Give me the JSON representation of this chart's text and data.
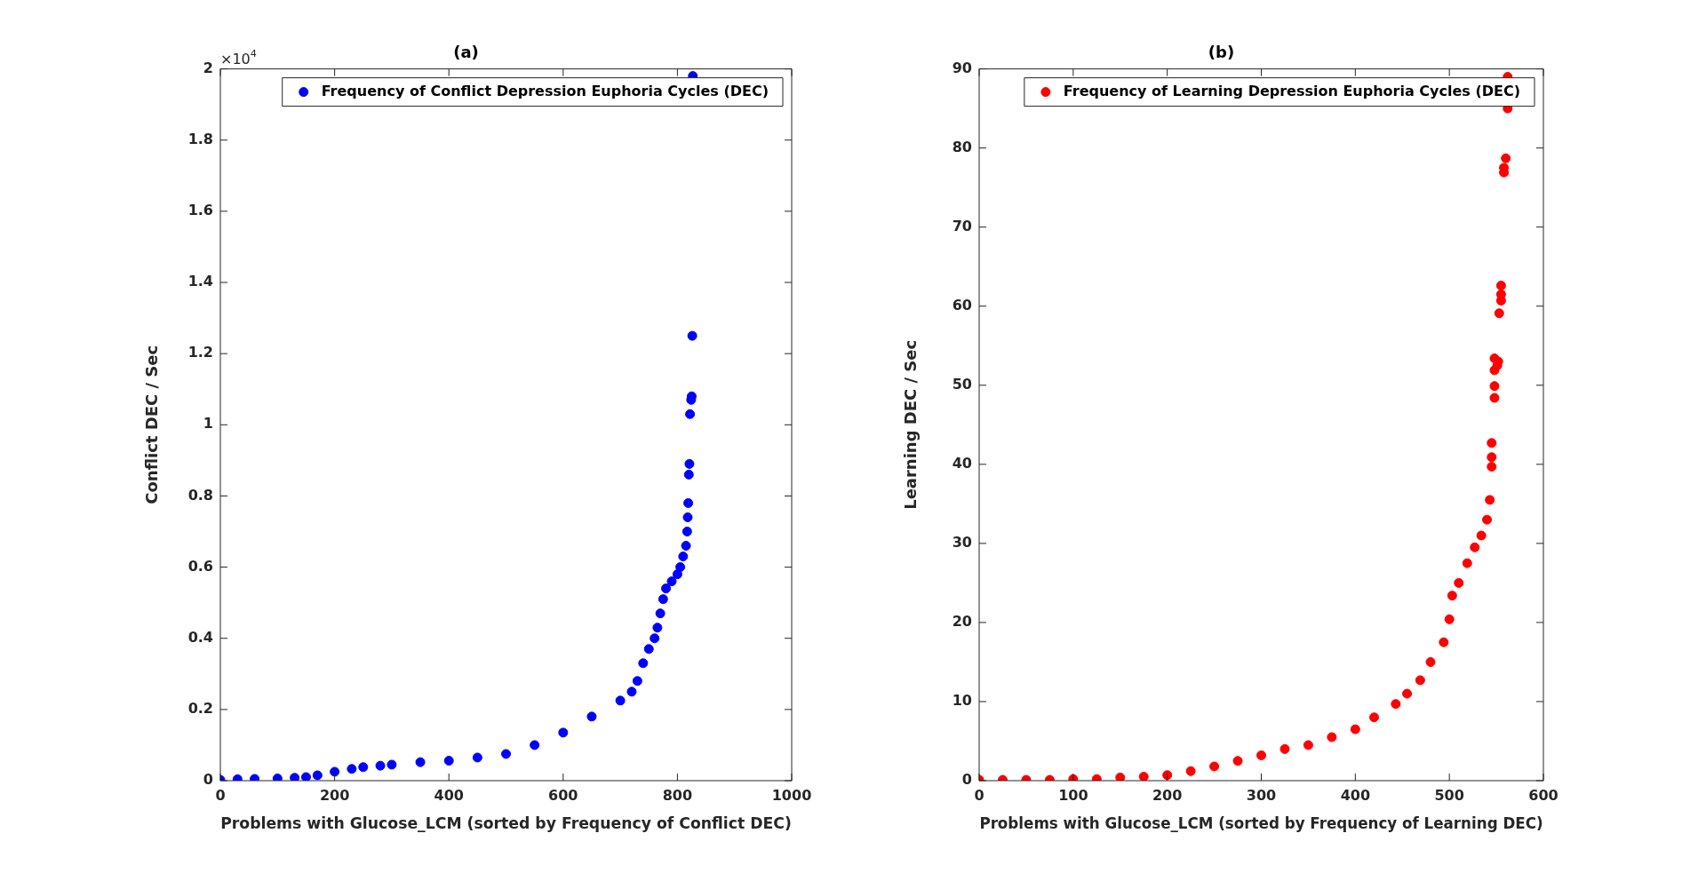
{
  "chart_data": [
    {
      "type": "scatter",
      "title": "(a)",
      "xlabel": "Problems with Glucose_LCM (sorted by Frequency of Conflict DEC)",
      "ylabel": "Conflict DEC / Sec",
      "annotations": [
        "×10$^{4}$"
      ],
      "marker": "circle",
      "legend": "top right",
      "grid": false,
      "xlim": [
        0,
        1000
      ],
      "xticks": [
        0,
        200,
        400,
        600,
        800,
        1000
      ],
      "ylim": [
        0,
        2
      ],
      "yticks": [
        0,
        0.2,
        0.4,
        0.6,
        0.8,
        1,
        1.2,
        1.4,
        1.6,
        1.8,
        2
      ],
      "series": [
        {
          "name": "Frequency of Conflict Depression Euphoria Cycles (DEC)",
          "color": "#0000ff",
          "x": [
            0,
            30,
            60,
            100,
            130,
            150,
            170,
            200,
            230,
            250,
            280,
            300,
            350,
            400,
            450,
            500,
            550,
            600,
            650,
            700,
            720,
            730,
            740,
            750,
            760,
            765,
            770,
            775,
            780,
            790,
            800,
            805,
            810,
            815,
            817,
            818,
            819,
            820,
            821,
            822,
            824,
            825,
            826,
            827
          ],
          "values": [
            0.002,
            0.004,
            0.005,
            0.006,
            0.008,
            0.01,
            0.015,
            0.025,
            0.033,
            0.038,
            0.042,
            0.045,
            0.052,
            0.056,
            0.065,
            0.075,
            0.1,
            0.135,
            0.18,
            0.225,
            0.25,
            0.28,
            0.33,
            0.37,
            0.4,
            0.43,
            0.47,
            0.51,
            0.54,
            0.56,
            0.58,
            0.6,
            0.63,
            0.66,
            0.7,
            0.74,
            0.78,
            0.86,
            0.89,
            1.03,
            1.07,
            1.08,
            1.25,
            1.98
          ]
        }
      ]
    },
    {
      "type": "scatter",
      "title": "(b)",
      "xlabel": "Problems with Glucose_LCM (sorted by Frequency of Learning DEC)",
      "ylabel": "Learning DEC / Sec",
      "marker": "circle",
      "legend": "top right",
      "grid": false,
      "xlim": [
        0,
        600
      ],
      "xticks": [
        0,
        100,
        200,
        300,
        400,
        500,
        600
      ],
      "ylim": [
        0,
        90
      ],
      "yticks": [
        0,
        10,
        20,
        30,
        40,
        50,
        60,
        70,
        80,
        90
      ],
      "series": [
        {
          "name": "Frequency of Learning Depression Euphoria Cycles (DEC)",
          "color": "#ff0000",
          "x": [
            0,
            25,
            50,
            75,
            100,
            125,
            150,
            175,
            200,
            225,
            250,
            275,
            300,
            325,
            350,
            375,
            400,
            420,
            443,
            455,
            469,
            480,
            494,
            500,
            503,
            510,
            519,
            527,
            534,
            540,
            543,
            545,
            545,
            545,
            548,
            548,
            548,
            548,
            551,
            552,
            553,
            555,
            555,
            555,
            558,
            558,
            560,
            562,
            562
          ],
          "values": [
            0.1,
            0.1,
            0.1,
            0.1,
            0.2,
            0.2,
            0.4,
            0.5,
            0.7,
            1.2,
            1.8,
            2.5,
            3.2,
            4,
            4.5,
            5.5,
            6.5,
            8,
            9.7,
            11,
            12.7,
            15,
            17.5,
            20.4,
            23.4,
            25,
            27.5,
            29.5,
            31,
            33,
            35.5,
            39.7,
            40.9,
            42.7,
            48.4,
            49.9,
            51.9,
            53.4,
            52.5,
            53,
            59.1,
            60.7,
            61.5,
            62.6,
            76.9,
            77.5,
            78.7,
            85,
            89
          ]
        }
      ]
    }
  ]
}
